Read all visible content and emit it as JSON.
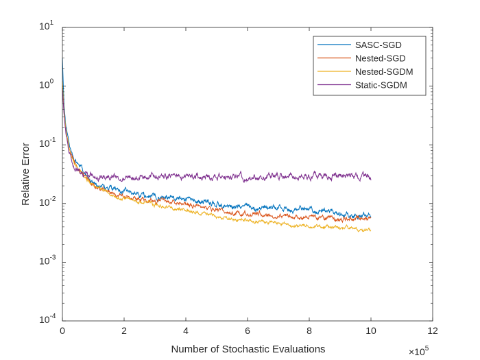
{
  "chart_data": {
    "type": "line",
    "title": "",
    "xlabel": "Number of Stochastic Evaluations",
    "ylabel": "Relative Error",
    "x_scale": "linear",
    "y_scale": "log",
    "x_multiplier_label": "×10",
    "x_multiplier_exponent": "5",
    "xlim": [
      0,
      1200000
    ],
    "ylim": [
      0.0001,
      10
    ],
    "x_ticks": [
      0,
      200000,
      400000,
      600000,
      800000,
      1000000,
      1200000
    ],
    "x_tick_labels": [
      "0",
      "2",
      "4",
      "6",
      "8",
      "10",
      "12"
    ],
    "y_ticks": [
      0.0001,
      0.001,
      0.01,
      0.1,
      1,
      10
    ],
    "y_tick_bases": [
      "10",
      "10",
      "10",
      "10",
      "10",
      "10"
    ],
    "y_tick_exponents": [
      "-4",
      "-3",
      "-2",
      "-1",
      "0",
      "1"
    ],
    "grid": false,
    "legend_position": "top-right",
    "series": [
      {
        "name": "SASC-SGD",
        "color": "#0072BD",
        "noise": 0.06,
        "x": [
          0,
          5000,
          10000,
          20000,
          30000,
          50000,
          80000,
          100000,
          150000,
          200000,
          250000,
          300000,
          350000,
          400000,
          450000,
          500000,
          550000,
          600000,
          650000,
          700000,
          750000,
          800000,
          850000,
          900000,
          950000,
          1000000
        ],
        "y": [
          3.0,
          0.5,
          0.25,
          0.12,
          0.07,
          0.045,
          0.03,
          0.022,
          0.018,
          0.016,
          0.014,
          0.0135,
          0.013,
          0.012,
          0.011,
          0.0095,
          0.009,
          0.0088,
          0.0085,
          0.0084,
          0.0082,
          0.0078,
          0.0072,
          0.0065,
          0.006,
          0.0068
        ]
      },
      {
        "name": "Nested-SGD",
        "color": "#D95319",
        "noise": 0.05,
        "x": [
          0,
          5000,
          10000,
          20000,
          30000,
          50000,
          80000,
          100000,
          150000,
          200000,
          250000,
          300000,
          350000,
          400000,
          450000,
          500000,
          550000,
          600000,
          650000,
          700000,
          750000,
          800000,
          850000,
          900000,
          950000,
          1000000
        ],
        "y": [
          1.0,
          0.35,
          0.2,
          0.1,
          0.06,
          0.04,
          0.026,
          0.02,
          0.016,
          0.013,
          0.012,
          0.011,
          0.0105,
          0.0095,
          0.0085,
          0.0075,
          0.007,
          0.0068,
          0.0065,
          0.0063,
          0.006,
          0.0058,
          0.0056,
          0.0054,
          0.0055,
          0.0057
        ]
      },
      {
        "name": "Nested-SGDM",
        "color": "#EDB120",
        "noise": 0.04,
        "x": [
          0,
          5000,
          10000,
          20000,
          30000,
          50000,
          80000,
          100000,
          150000,
          200000,
          250000,
          300000,
          350000,
          400000,
          450000,
          500000,
          550000,
          600000,
          650000,
          700000,
          750000,
          800000,
          850000,
          900000,
          950000,
          1000000
        ],
        "y": [
          1.2,
          0.4,
          0.22,
          0.1,
          0.06,
          0.038,
          0.026,
          0.021,
          0.015,
          0.012,
          0.011,
          0.0095,
          0.0085,
          0.0075,
          0.0068,
          0.006,
          0.0055,
          0.0052,
          0.0049,
          0.0046,
          0.0044,
          0.0042,
          0.004,
          0.0038,
          0.0037,
          0.0035
        ]
      },
      {
        "name": "Static-SGDM",
        "color": "#7E2F8E",
        "noise": 0.07,
        "x": [
          0,
          5000,
          10000,
          20000,
          30000,
          50000,
          70000,
          100000,
          150000,
          200000,
          300000,
          400000,
          500000,
          600000,
          700000,
          800000,
          900000,
          1000000
        ],
        "y": [
          0.9,
          0.35,
          0.18,
          0.08,
          0.05,
          0.035,
          0.03,
          0.029,
          0.029,
          0.029,
          0.029,
          0.029,
          0.029,
          0.029,
          0.029,
          0.029,
          0.029,
          0.028
        ]
      }
    ]
  }
}
